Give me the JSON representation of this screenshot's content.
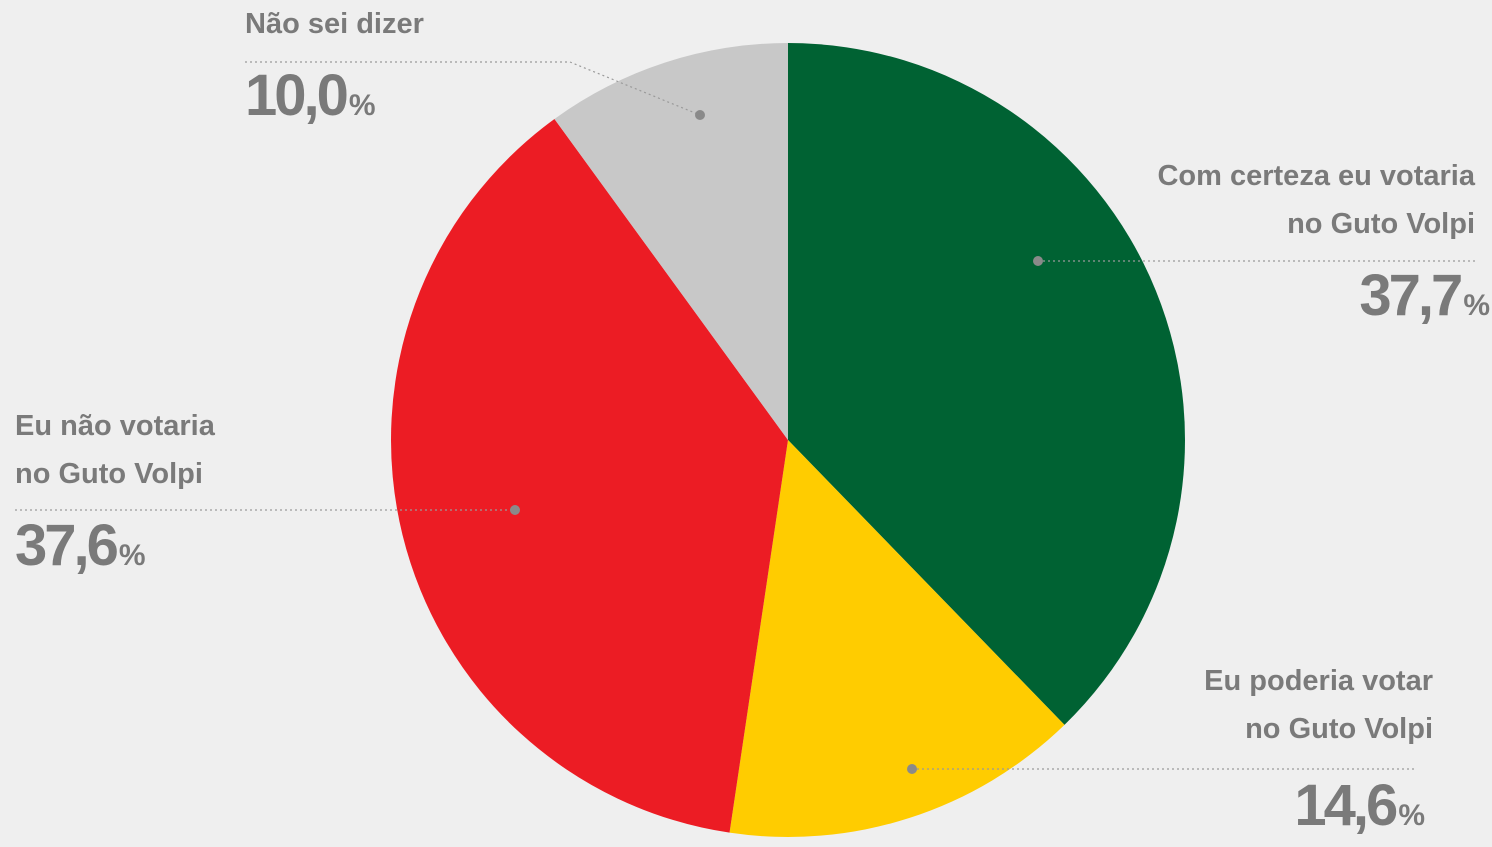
{
  "chart_data": {
    "type": "pie",
    "categories": [
      "Com certeza eu votaria\nno Guto Volpi",
      "Eu poderia votar\nno Guto Volpi",
      "Eu não votaria\nno Guto Volpi",
      "Não sei dizer"
    ],
    "values": [
      37.7,
      14.6,
      37.6,
      10.0
    ],
    "value_labels": [
      "37,7%",
      "14,6%",
      "37,6%",
      "10,0%"
    ],
    "colors": [
      "#006233",
      "#ffcc00",
      "#ec1c24",
      "#c8c8c8"
    ]
  }
}
